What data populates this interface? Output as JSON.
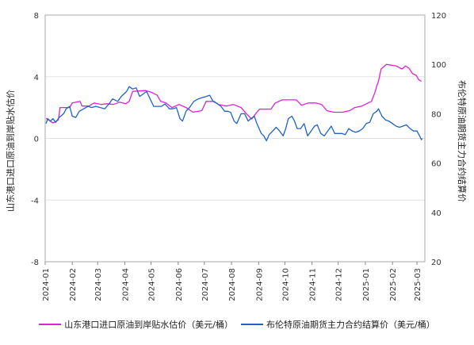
{
  "chart_data": {
    "type": "line",
    "x_ticks": [
      "2024-01",
      "2024-02",
      "2024-03",
      "2024-04",
      "2024-05",
      "2024-06",
      "2024-07",
      "2024-08",
      "2024-09",
      "2024-10",
      "2024-11",
      "2024-12",
      "2025-01",
      "2025-02",
      "2025-03"
    ],
    "ylabel_left": "山东港口进口原油到岸贴水估价",
    "ylabel_right": "布伦特原油期货主力合约结算价",
    "y_left": {
      "min": -8,
      "max": 8,
      "ticks": [
        "8",
        "4",
        "0",
        "-4",
        "-8"
      ]
    },
    "y_right": {
      "min": 20,
      "max": 120,
      "ticks": [
        "120",
        "100",
        "80",
        "60",
        "40",
        "20"
      ]
    },
    "grid": "horizontal",
    "legend_position": "bottom",
    "series": [
      {
        "name": "山东港口进口原油到岸贴水估价（美元/桶）",
        "axis": "left",
        "color": "#e020d8",
        "points": [
          [
            "2024-01-02",
            1.3
          ],
          [
            "2024-01-10",
            1.0
          ],
          [
            "2024-01-16",
            1.2
          ],
          [
            "2024-01-18",
            2.0
          ],
          [
            "2024-01-29",
            2.0
          ],
          [
            "2024-02-01",
            2.3
          ],
          [
            "2024-02-10",
            2.4
          ],
          [
            "2024-02-12",
            2.1
          ],
          [
            "2024-02-20",
            2.1
          ],
          [
            "2024-02-26",
            2.3
          ],
          [
            "2024-03-05",
            2.2
          ],
          [
            "2024-03-12",
            2.25
          ],
          [
            "2024-03-19",
            2.2
          ],
          [
            "2024-03-26",
            2.35
          ],
          [
            "2024-04-02",
            2.25
          ],
          [
            "2024-04-06",
            2.4
          ],
          [
            "2024-04-10",
            3.05
          ],
          [
            "2024-04-25",
            3.1
          ],
          [
            "2024-05-01",
            3.0
          ],
          [
            "2024-05-08",
            2.8
          ],
          [
            "2024-05-12",
            2.4
          ],
          [
            "2024-05-18",
            2.3
          ],
          [
            "2024-05-25",
            2.0
          ],
          [
            "2024-06-02",
            2.2
          ],
          [
            "2024-06-10",
            2.0
          ],
          [
            "2024-06-18",
            1.7
          ],
          [
            "2024-06-28",
            1.8
          ],
          [
            "2024-07-03",
            2.4
          ],
          [
            "2024-07-12",
            2.4
          ],
          [
            "2024-07-17",
            2.2
          ],
          [
            "2024-07-26",
            2.1
          ],
          [
            "2024-08-03",
            2.2
          ],
          [
            "2024-08-12",
            2.0
          ],
          [
            "2024-08-18",
            1.6
          ],
          [
            "2024-08-24",
            1.25
          ],
          [
            "2024-08-30",
            1.7
          ],
          [
            "2024-09-02",
            1.9
          ],
          [
            "2024-09-15",
            1.9
          ],
          [
            "2024-09-20",
            2.3
          ],
          [
            "2024-09-28",
            2.5
          ],
          [
            "2024-10-05",
            2.5
          ],
          [
            "2024-10-14",
            2.5
          ],
          [
            "2024-10-20",
            2.15
          ],
          [
            "2024-10-28",
            2.3
          ],
          [
            "2024-11-05",
            2.3
          ],
          [
            "2024-11-12",
            2.2
          ],
          [
            "2024-11-18",
            1.8
          ],
          [
            "2024-11-26",
            1.7
          ],
          [
            "2024-12-06",
            1.7
          ],
          [
            "2024-12-14",
            1.8
          ],
          [
            "2024-12-20",
            2.0
          ],
          [
            "2024-12-28",
            2.1
          ],
          [
            "2025-01-04",
            2.3
          ],
          [
            "2025-01-08",
            2.4
          ],
          [
            "2025-01-12",
            3.0
          ],
          [
            "2025-01-14",
            3.4
          ],
          [
            "2025-01-16",
            3.7
          ],
          [
            "2025-01-19",
            4.5
          ],
          [
            "2025-01-25",
            4.8
          ],
          [
            "2025-02-05",
            4.7
          ],
          [
            "2025-02-12",
            4.5
          ],
          [
            "2025-02-16",
            4.7
          ],
          [
            "2025-02-20",
            4.55
          ],
          [
            "2025-02-24",
            4.2
          ],
          [
            "2025-02-28",
            4.1
          ],
          [
            "2025-03-03",
            3.8
          ],
          [
            "2025-03-06",
            3.7
          ]
        ]
      },
      {
        "name": "布伦特原油期货主力合约结算价（美元/桶）",
        "axis": "right",
        "color": "#1f62c8",
        "points": [
          [
            "2024-01-02",
            76
          ],
          [
            "2024-01-04",
            78
          ],
          [
            "2024-01-07",
            77
          ],
          [
            "2024-01-10",
            78
          ],
          [
            "2024-01-13",
            76.5
          ],
          [
            "2024-01-17",
            78.5
          ],
          [
            "2024-01-22",
            80
          ],
          [
            "2024-01-25",
            82
          ],
          [
            "2024-01-29",
            83
          ],
          [
            "2024-02-01",
            79
          ],
          [
            "2024-02-05",
            78.5
          ],
          [
            "2024-02-09",
            81
          ],
          [
            "2024-02-14",
            82
          ],
          [
            "2024-02-19",
            83
          ],
          [
            "2024-02-23",
            82.5
          ],
          [
            "2024-02-28",
            83
          ],
          [
            "2024-03-04",
            82.5
          ],
          [
            "2024-03-09",
            82
          ],
          [
            "2024-03-14",
            84
          ],
          [
            "2024-03-18",
            86
          ],
          [
            "2024-03-24",
            85
          ],
          [
            "2024-03-28",
            87
          ],
          [
            "2024-04-03",
            89
          ],
          [
            "2024-04-06",
            91
          ],
          [
            "2024-04-10",
            90
          ],
          [
            "2024-04-14",
            90.5
          ],
          [
            "2024-04-18",
            87
          ],
          [
            "2024-04-22",
            88
          ],
          [
            "2024-04-26",
            89
          ],
          [
            "2024-04-30",
            86
          ],
          [
            "2024-05-04",
            83
          ],
          [
            "2024-05-08",
            83
          ],
          [
            "2024-05-13",
            83
          ],
          [
            "2024-05-17",
            84
          ],
          [
            "2024-05-22",
            82
          ],
          [
            "2024-05-26",
            82
          ],
          [
            "2024-05-30",
            82.5
          ],
          [
            "2024-06-03",
            78
          ],
          [
            "2024-06-06",
            77
          ],
          [
            "2024-06-10",
            81
          ],
          [
            "2024-06-14",
            82.5
          ],
          [
            "2024-06-19",
            85
          ],
          [
            "2024-06-24",
            86
          ],
          [
            "2024-06-28",
            86.5
          ],
          [
            "2024-07-03",
            87
          ],
          [
            "2024-07-07",
            87.5
          ],
          [
            "2024-07-11",
            85
          ],
          [
            "2024-07-16",
            84
          ],
          [
            "2024-07-20",
            83
          ],
          [
            "2024-07-24",
            81
          ],
          [
            "2024-07-28",
            81
          ],
          [
            "2024-07-31",
            80.5
          ],
          [
            "2024-08-04",
            77
          ],
          [
            "2024-08-07",
            76
          ],
          [
            "2024-08-12",
            80
          ],
          [
            "2024-08-16",
            80
          ],
          [
            "2024-08-20",
            77
          ],
          [
            "2024-08-23",
            78
          ],
          [
            "2024-08-27",
            79
          ],
          [
            "2024-08-30",
            76
          ],
          [
            "2024-09-04",
            72
          ],
          [
            "2024-09-07",
            71
          ],
          [
            "2024-09-10",
            69
          ],
          [
            "2024-09-13",
            71.5
          ],
          [
            "2024-09-17",
            73
          ],
          [
            "2024-09-21",
            74.5
          ],
          [
            "2024-09-25",
            73
          ],
          [
            "2024-09-29",
            71
          ],
          [
            "2024-10-02",
            74
          ],
          [
            "2024-10-05",
            78
          ],
          [
            "2024-10-09",
            79
          ],
          [
            "2024-10-12",
            77
          ],
          [
            "2024-10-15",
            74
          ],
          [
            "2024-10-19",
            74
          ],
          [
            "2024-10-23",
            76
          ],
          [
            "2024-10-27",
            71
          ],
          [
            "2024-10-31",
            73
          ],
          [
            "2024-11-04",
            75
          ],
          [
            "2024-11-07",
            75.5
          ],
          [
            "2024-11-11",
            72
          ],
          [
            "2024-11-15",
            71
          ],
          [
            "2024-11-19",
            73
          ],
          [
            "2024-11-23",
            75
          ],
          [
            "2024-11-27",
            72
          ],
          [
            "2024-12-01",
            72
          ],
          [
            "2024-12-05",
            72
          ],
          [
            "2024-12-09",
            71.5
          ],
          [
            "2024-12-13",
            74
          ],
          [
            "2024-12-17",
            73
          ],
          [
            "2024-12-21",
            72.5
          ],
          [
            "2024-12-25",
            73
          ],
          [
            "2024-12-29",
            74
          ],
          [
            "2025-01-02",
            76
          ],
          [
            "2025-01-06",
            76.5
          ],
          [
            "2025-01-10",
            80
          ],
          [
            "2025-01-14",
            81
          ],
          [
            "2025-01-16",
            82
          ],
          [
            "2025-01-20",
            79
          ],
          [
            "2025-01-24",
            77.5
          ],
          [
            "2025-01-28",
            77
          ],
          [
            "2025-02-01",
            76
          ],
          [
            "2025-02-05",
            75
          ],
          [
            "2025-02-09",
            74.5
          ],
          [
            "2025-02-13",
            75
          ],
          [
            "2025-02-17",
            75.5
          ],
          [
            "2025-02-21",
            74
          ],
          [
            "2025-02-25",
            73
          ],
          [
            "2025-03-01",
            73
          ],
          [
            "2025-03-04",
            71
          ],
          [
            "2025-03-06",
            69.5
          ],
          [
            "2025-03-07",
            70
          ]
        ]
      }
    ]
  }
}
